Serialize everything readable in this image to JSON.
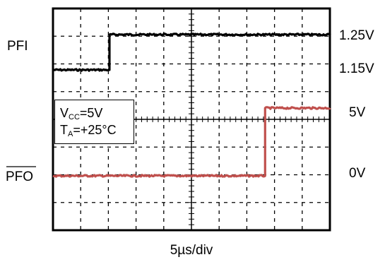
{
  "chart_data": {
    "type": "line",
    "title": "",
    "xlabel": "5µs/div",
    "ylabel": "",
    "grid": true,
    "x_divisions": 10,
    "y_divisions": 8,
    "x_range_us": [
      0,
      50
    ],
    "annotation": {
      "vcc": "V",
      "vcc_sub": "CC",
      "vcc_rest": "=5V",
      "ta": "T",
      "ta_sub": "A",
      "ta_rest": "=+25°C"
    },
    "series": [
      {
        "name": "PFI",
        "color": "#000000",
        "levels": {
          "high": "1.25V",
          "low": "1.15V"
        },
        "x_us": [
          0,
          10.2,
          10.2,
          50
        ],
        "level": [
          "low",
          "low",
          "high",
          "high"
        ]
      },
      {
        "name": "PFO",
        "overbar": true,
        "color": "#c0504d",
        "levels": {
          "high": "5V",
          "low": "0V"
        },
        "x_us": [
          0,
          38.3,
          38.3,
          50
        ],
        "level": [
          "low",
          "low",
          "high",
          "high"
        ]
      }
    ]
  }
}
